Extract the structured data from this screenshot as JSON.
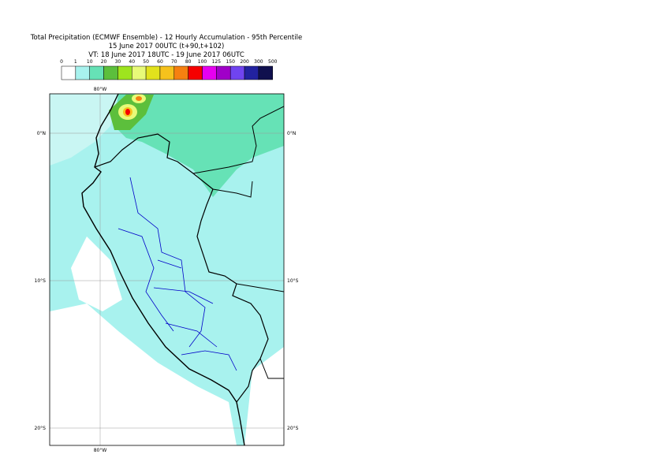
{
  "title_lines": [
    "Total Precipitation (ECMWF Ensemble) - 12 Hourly Accumulation - 95th Percentile",
    "15 June 2017 00UTC (t+90,t+102)",
    "VT: 18 June 2017 18UTC - 19 June 2017 06UTC"
  ],
  "legend": {
    "thresholds": [
      0,
      1,
      10,
      20,
      30,
      40,
      50,
      60,
      70,
      80,
      100,
      125,
      150,
      200,
      300,
      500
    ],
    "colors": [
      "#ffffff",
      "#a8f2ee",
      "#66e2b6",
      "#5cbf3c",
      "#9ee41e",
      "#e8fa78",
      "#e2e21c",
      "#f6c21c",
      "#f68010",
      "#f60000",
      "#e600f0",
      "#a000c8",
      "#7044f0",
      "#2222a0",
      "#10104e"
    ]
  },
  "lat_labels": [
    {
      "value": 0,
      "label": "0°N"
    },
    {
      "value": -10,
      "label": "10°S"
    },
    {
      "value": -20,
      "label": "20°S"
    }
  ],
  "lon_labels": [
    {
      "value": -80,
      "label": "80°W"
    }
  ]
}
